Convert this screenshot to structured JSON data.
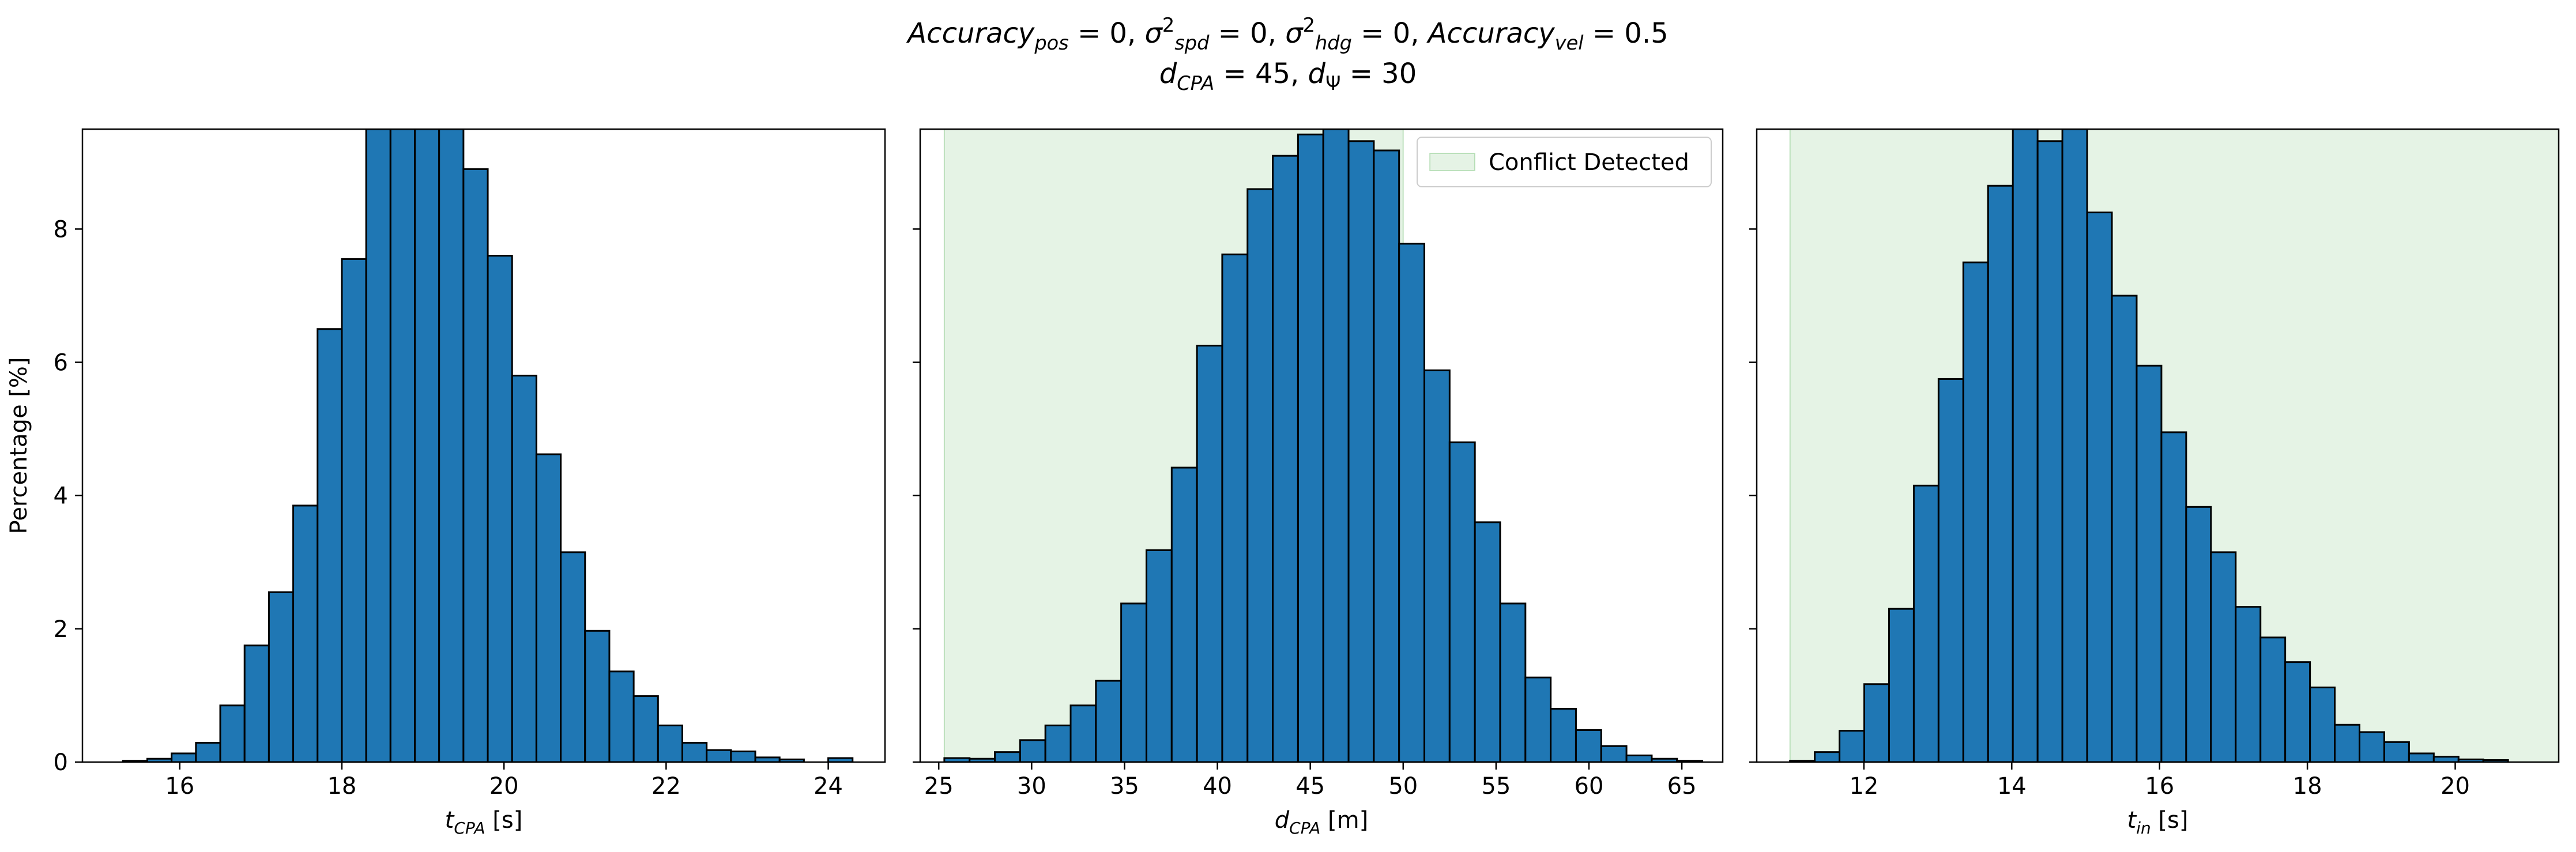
{
  "figure": {
    "title_line1_parts": [
      {
        "t": "Accuracy",
        "style": "italic"
      },
      {
        "t": "pos",
        "style": "italic-sub"
      },
      {
        "t": " = 0, ",
        "style": "normal"
      },
      {
        "t": "σ",
        "style": "italic"
      },
      {
        "t": "2",
        "style": "sup"
      },
      {
        "t": "spd",
        "style": "italic-sub"
      },
      {
        "t": " = 0, ",
        "style": "normal"
      },
      {
        "t": "σ",
        "style": "italic"
      },
      {
        "t": "2",
        "style": "sup"
      },
      {
        "t": "hdg",
        "style": "italic-sub"
      },
      {
        "t": " = 0, ",
        "style": "normal"
      },
      {
        "t": "Accuracy",
        "style": "italic"
      },
      {
        "t": "vel",
        "style": "italic-sub"
      },
      {
        "t": " = 0.5",
        "style": "normal"
      }
    ],
    "title_line2_parts": [
      {
        "t": "d",
        "style": "italic"
      },
      {
        "t": "CPA",
        "style": "italic-sub"
      },
      {
        "t": " = 45, ",
        "style": "normal"
      },
      {
        "t": "d",
        "style": "italic"
      },
      {
        "t": "Ψ",
        "style": "sub"
      },
      {
        "t": " = 30",
        "style": "normal"
      }
    ],
    "colors": {
      "bar": "#1f77b4",
      "edge": "#000000",
      "conflict": "#2ca02c"
    }
  },
  "chart_data": [
    {
      "type": "bar",
      "xlabel_parts": [
        {
          "t": "t",
          "style": "italic"
        },
        {
          "t": "CPA",
          "style": "italic-sub"
        },
        {
          "t": " [s]",
          "style": "normal"
        }
      ],
      "ylabel": "Percentage [%]",
      "xlim": [
        14.8,
        24.7
      ],
      "ylim": [
        0,
        9.5
      ],
      "xticks": [
        16,
        18,
        20,
        22,
        24
      ],
      "yticks": [
        0,
        2,
        4,
        6,
        8
      ],
      "show_ytick_labels": true,
      "bin_start": 15.3,
      "bin_width": 0.3,
      "values": [
        0.02,
        0.05,
        0.13,
        0.29,
        0.85,
        1.75,
        2.55,
        3.85,
        6.5,
        7.55,
        9.5,
        9.5,
        9.5,
        9.5,
        8.9,
        7.6,
        5.8,
        4.62,
        3.15,
        1.97,
        1.36,
        0.99,
        0.55,
        0.29,
        0.18,
        0.16,
        0.07,
        0.04,
        0.0,
        0.06
      ],
      "conflict_span": null,
      "legend": null
    },
    {
      "type": "bar",
      "xlabel_parts": [
        {
          "t": "d",
          "style": "italic"
        },
        {
          "t": "CPA",
          "style": "italic-sub"
        },
        {
          "t": " [m]",
          "style": "normal"
        }
      ],
      "ylabel": "",
      "xlim": [
        24.0,
        67.2
      ],
      "ylim": [
        0,
        9.5
      ],
      "xticks": [
        25,
        30,
        35,
        40,
        45,
        50,
        55,
        60,
        65
      ],
      "yticks": [
        0,
        2,
        4,
        6,
        8
      ],
      "show_ytick_labels": false,
      "bin_start": 25.3,
      "bin_width": 1.36,
      "values": [
        0.06,
        0.05,
        0.15,
        0.33,
        0.55,
        0.85,
        1.22,
        2.38,
        3.18,
        4.42,
        6.25,
        7.62,
        8.6,
        9.1,
        9.42,
        9.5,
        9.32,
        9.18,
        7.78,
        5.88,
        4.8,
        3.6,
        2.38,
        1.27,
        0.8,
        0.48,
        0.24,
        0.1,
        0.05,
        0.02
      ],
      "conflict_span": [
        25.3,
        50.0
      ],
      "legend": {
        "label": "Conflict Detected",
        "position": "upper right"
      }
    },
    {
      "type": "bar",
      "xlabel_parts": [
        {
          "t": "t",
          "style": "italic"
        },
        {
          "t": "in",
          "style": "italic-sub"
        },
        {
          "t": " [s]",
          "style": "normal"
        }
      ],
      "ylabel": "",
      "xlim": [
        10.55,
        21.4
      ],
      "ylim": [
        0,
        9.5
      ],
      "xticks": [
        12,
        14,
        16,
        18,
        20
      ],
      "yticks": [
        0,
        2,
        4,
        6,
        8
      ],
      "show_ytick_labels": false,
      "bin_start": 11.0,
      "bin_width": 0.335,
      "values": [
        0.02,
        0.15,
        0.47,
        1.17,
        2.3,
        4.15,
        5.75,
        7.5,
        8.65,
        9.5,
        9.32,
        9.5,
        8.25,
        7.0,
        5.95,
        4.95,
        3.83,
        3.15,
        2.33,
        1.87,
        1.5,
        1.12,
        0.56,
        0.45,
        0.3,
        0.13,
        0.08,
        0.04,
        0.03,
        0.0
      ],
      "conflict_span": [
        11.0,
        50.0
      ],
      "legend": null
    }
  ]
}
